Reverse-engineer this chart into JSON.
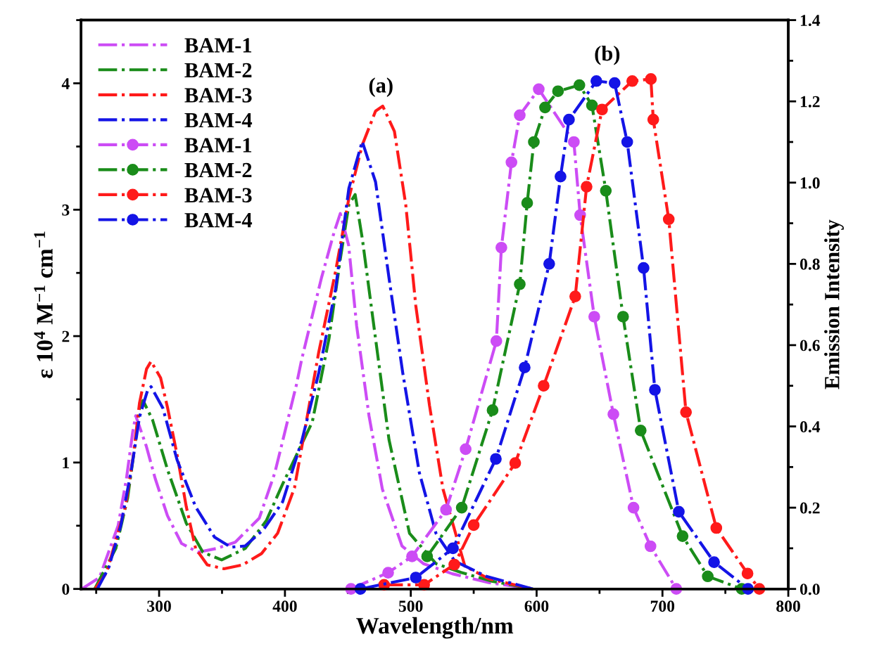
{
  "chart_data": {
    "type": "line",
    "xlabel": "Wavelength/nm",
    "ylabel": "ε 10$^{4}$ M$^{−1}$ cm$^{−1}$",
    "y2label": "Emission Intensity",
    "xlim": [
      238,
      800
    ],
    "xticks": [
      300,
      400,
      500,
      600,
      700,
      800
    ],
    "ylim": [
      0,
      4.5
    ],
    "yticks": [
      0,
      1,
      2,
      3,
      4
    ],
    "y2lim": [
      0,
      1.4
    ],
    "y2ticks": [
      {
        "value": 0,
        "label": "0.0"
      },
      {
        "value": 0.2,
        "label": "0.2"
      },
      {
        "value": 0.4,
        "label": "0.4"
      },
      {
        "value": 0.6,
        "label": "0.6"
      },
      {
        "value": 0.8,
        "label": "0.8"
      },
      {
        "value": 1,
        "label": "1.0"
      },
      {
        "value": 1.2,
        "label": "1.2"
      },
      {
        "value": 1.4,
        "label": "1.4"
      }
    ],
    "legend": "top left",
    "grid": false,
    "line_style": "dashdot",
    "annotations": [
      "(a)",
      "(b)"
    ],
    "series": [
      {
        "name": "BAM-1",
        "color": "#cc4cf5",
        "marker": "none",
        "x": [
          238.5,
          252.6,
          267.4,
          274,
          279,
          281.4,
          289.8,
          297,
          306.6,
          317.8,
          330.8,
          345.7,
          360.5,
          379.6,
          392,
          409,
          413.4,
          429,
          439,
          444,
          450.6,
          457,
          466.8,
          477.4,
          493,
          510,
          533,
          562,
          597
        ],
        "values": [
          0,
          0.09,
          0.5,
          0.87,
          1.24,
          1.37,
          1.13,
          0.87,
          0.58,
          0.36,
          0.29,
          0.32,
          0.37,
          0.56,
          0.92,
          1.61,
          1.82,
          2.46,
          2.82,
          2.97,
          2.72,
          2.08,
          1.37,
          0.79,
          0.34,
          0.2,
          0.12,
          0.05,
          0
        ]
      },
      {
        "name": "BAM-2",
        "color": "#1a8c1a",
        "marker": "none",
        "x": [
          248.8,
          265.6,
          275,
          280.7,
          284.4,
          287.2,
          294.7,
          306.8,
          321.6,
          334.8,
          349.7,
          368.4,
          385.2,
          398.2,
          421.7,
          435,
          444,
          450.8,
          455.8,
          461.5,
          472,
          482.7,
          499,
          520,
          540,
          565,
          597
        ],
        "values": [
          0,
          0.32,
          0.72,
          1.13,
          1.43,
          1.49,
          1.34,
          0.94,
          0.52,
          0.29,
          0.23,
          0.32,
          0.54,
          0.83,
          1.32,
          1.98,
          2.61,
          3.04,
          3.12,
          2.77,
          1.98,
          1.18,
          0.44,
          0.2,
          0.13,
          0.06,
          0
        ]
      },
      {
        "name": "BAM-3",
        "color": "#ff1a1a",
        "marker": "none",
        "x": [
          249,
          258.3,
          273.2,
          279.6,
          284.4,
          290,
          293.6,
          301.2,
          306.8,
          314.3,
          321.6,
          329,
          338.3,
          351.6,
          366.3,
          381.4,
          394.2,
          407.6,
          426.8,
          440.2,
          450.8,
          461.4,
          472,
          477.7,
          487,
          496,
          504,
          514.9,
          525.6,
          543,
          562,
          597
        ],
        "values": [
          0,
          0.13,
          0.65,
          1.06,
          1.47,
          1.74,
          1.8,
          1.67,
          1.43,
          1.06,
          0.65,
          0.32,
          0.19,
          0.16,
          0.19,
          0.28,
          0.44,
          0.8,
          1.87,
          2.51,
          3.09,
          3.51,
          3.78,
          3.82,
          3.62,
          3.04,
          2.24,
          1.45,
          0.79,
          0.18,
          0.08,
          0
        ]
      },
      {
        "name": "BAM-4",
        "color": "#1414e6",
        "marker": "none",
        "x": [
          250.9,
          260,
          269.5,
          277.9,
          284.4,
          290.8,
          293.6,
          303,
          314.3,
          329,
          344,
          357,
          368.4,
          383,
          398.2,
          413.6,
          426.9,
          440.2,
          450.8,
          461.4,
          472,
          482.7,
          493.6,
          506.8,
          520,
          535,
          560,
          597
        ],
        "values": [
          0,
          0.17,
          0.5,
          0.94,
          1.36,
          1.57,
          1.6,
          1.43,
          1.02,
          0.65,
          0.41,
          0.33,
          0.34,
          0.47,
          0.69,
          1.18,
          1.71,
          2.37,
          3.17,
          3.54,
          3.22,
          2.46,
          1.71,
          0.92,
          0.44,
          0.22,
          0.1,
          0
        ]
      },
      {
        "name": "BAM-1",
        "color": "#cc4cf5",
        "marker": "circle",
        "axis": "y2",
        "x": [
          452.5,
          482,
          501,
          528,
          543.6,
          568,
          572,
          580,
          586.6,
          601.7,
          629.6,
          634.6,
          645.8,
          661,
          677,
          690.5,
          711
        ],
        "values": [
          0,
          0.04,
          0.08,
          0.195,
          0.344,
          0.61,
          0.84,
          1.05,
          1.166,
          1.23,
          1.1,
          0.92,
          0.67,
          0.43,
          0.2,
          0.105,
          0
        ]
      },
      {
        "name": "BAM-2",
        "color": "#1a8c1a",
        "marker": "circle",
        "axis": "y2",
        "x": [
          513,
          540.5,
          565,
          586.6,
          592.5,
          597.8,
          606.7,
          617,
          634,
          644,
          655,
          668.7,
          682.7,
          716,
          736,
          763
        ],
        "values": [
          0.08,
          0.2,
          0.44,
          0.75,
          0.95,
          1.1,
          1.185,
          1.225,
          1.24,
          1.19,
          0.98,
          0.67,
          0.39,
          0.13,
          0.031,
          0
        ]
      },
      {
        "name": "BAM-3",
        "color": "#ff1a1a",
        "marker": "circle",
        "axis": "y2",
        "x": [
          478.8,
          510.6,
          534.6,
          550,
          583,
          605.6,
          630.7,
          639.7,
          652,
          676,
          690.8,
          692.7,
          705,
          718.7,
          742.8,
          767.6,
          777
        ],
        "values": [
          0.01,
          0.01,
          0.06,
          0.157,
          0.31,
          0.5,
          0.72,
          0.99,
          1.18,
          1.25,
          1.255,
          1.155,
          0.91,
          0.435,
          0.15,
          0.038,
          0
        ]
      },
      {
        "name": "BAM-4",
        "color": "#1414e6",
        "marker": "circle",
        "axis": "y2",
        "x": [
          460,
          504,
          533.5,
          567.6,
          590.5,
          610,
          619,
          625.7,
          647.5,
          662,
          672,
          685,
          694,
          713,
          741,
          768
        ],
        "values": [
          0,
          0.028,
          0.1,
          0.32,
          0.545,
          0.8,
          1.015,
          1.155,
          1.25,
          1.245,
          1.1,
          0.79,
          0.49,
          0.19,
          0.066,
          0
        ]
      }
    ]
  }
}
